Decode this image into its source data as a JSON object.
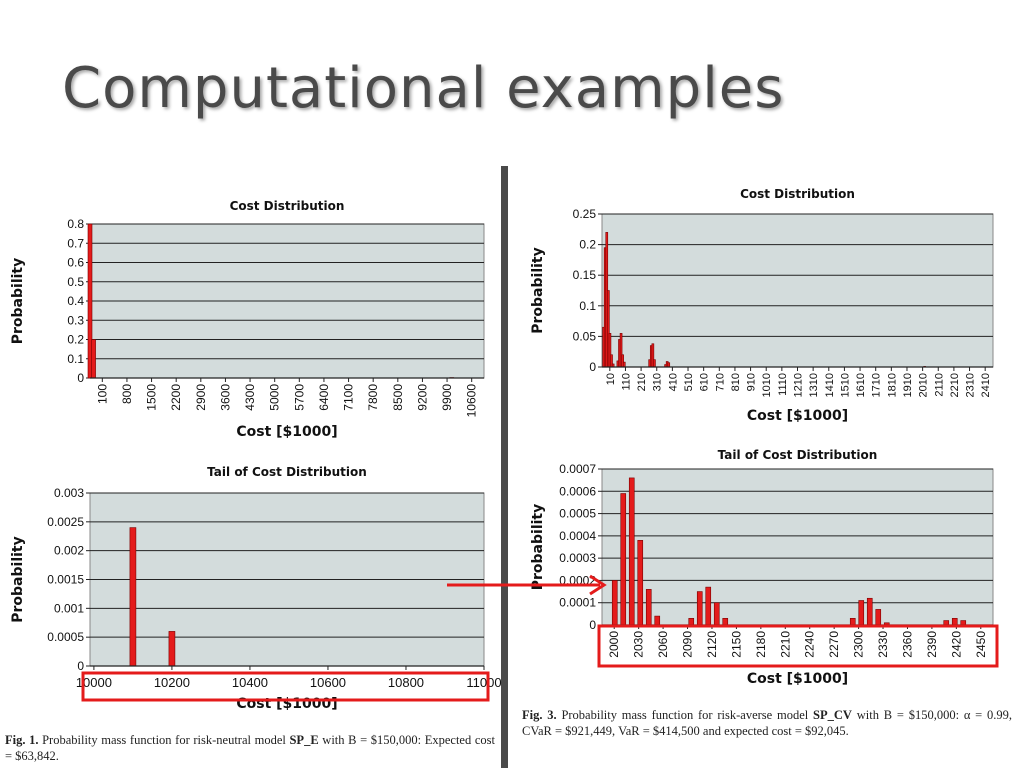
{
  "slide": {
    "title": "Computational examples"
  },
  "captions": {
    "fig1": {
      "label": "Fig. 1.",
      "pre": " Probability mass function for risk-neutral model ",
      "model": "SP_E",
      "post": " with B = $150,000: Expected cost = $63,842."
    },
    "fig3": {
      "label": "Fig. 3.",
      "pre": " Probability mass function for risk-averse model ",
      "model": "SP_CV",
      "post": " with B = $150,000: α = 0.99, CVaR = $921,449, VaR = $414,500 and expected cost = $92,045."
    }
  },
  "colors": {
    "bar": "#e41b1b",
    "bar_edge": "#7a0000",
    "plot_bg": "#d3dcdc",
    "highlight": "#e41b1b"
  },
  "chart_data": [
    {
      "id": "c1",
      "type": "bar",
      "title": "Cost Distribution",
      "xlabel": "Cost [$1000]",
      "ylabel": "Probability",
      "ylim": [
        0,
        0.8
      ],
      "yticks": [
        "0",
        "0.1",
        "0.2",
        "0.3",
        "0.4",
        "0.5",
        "0.6",
        "0.7",
        "0.8"
      ],
      "xticks": [
        "100",
        "800",
        "1500",
        "2200",
        "2900",
        "3600",
        "4300",
        "5000",
        "5700",
        "6400",
        "7100",
        "7800",
        "8500",
        "9200",
        "9900",
        "10600"
      ],
      "xlim": [
        0,
        11000
      ],
      "points": [
        [
          0,
          0.8
        ],
        [
          100,
          0.2
        ],
        [
          10100,
          0.0024
        ],
        [
          10200,
          0.0006
        ]
      ],
      "grid": true
    },
    {
      "id": "c2",
      "type": "bar",
      "title": "Tail of Cost Distribution",
      "xlabel": "Cost [$1000]",
      "ylabel": "Probability",
      "ylim": [
        0,
        0.003
      ],
      "yticks": [
        "0",
        "0.0005",
        "0.001",
        "0.0015",
        "0.002",
        "0.0025",
        "0.003"
      ],
      "xticks": [
        "10000",
        "10200",
        "10400",
        "10600",
        "10800",
        "11000"
      ],
      "xlim": [
        9990,
        11000
      ],
      "points": [
        [
          10100,
          0.0024
        ],
        [
          10200,
          0.0006
        ]
      ],
      "grid": true
    },
    {
      "id": "c3",
      "type": "bar",
      "title": "Cost Distribution",
      "xlabel": "Cost [$1000]",
      "ylabel": "Probability",
      "ylim": [
        0,
        0.25
      ],
      "yticks": [
        "0",
        "0.05",
        "0.1",
        "0.15",
        "0.2",
        "0.25"
      ],
      "xticks": [
        "10",
        "110",
        "210",
        "310",
        "410",
        "510",
        "610",
        "710",
        "810",
        "910",
        "1010",
        "1110",
        "1210",
        "1310",
        "1410",
        "1510",
        "1610",
        "1710",
        "1810",
        "1910",
        "2010",
        "2110",
        "2210",
        "2310",
        "2410"
      ],
      "xlim": [
        0,
        2460
      ],
      "points": [
        [
          10,
          0.065
        ],
        [
          20,
          0.195
        ],
        [
          30,
          0.22
        ],
        [
          40,
          0.125
        ],
        [
          50,
          0.055
        ],
        [
          60,
          0.02
        ],
        [
          70,
          0.005
        ],
        [
          100,
          0.01
        ],
        [
          110,
          0.045
        ],
        [
          120,
          0.055
        ],
        [
          130,
          0.02
        ],
        [
          140,
          0.008
        ],
        [
          300,
          0.012
        ],
        [
          310,
          0.035
        ],
        [
          320,
          0.038
        ],
        [
          330,
          0.012
        ],
        [
          400,
          0.004
        ],
        [
          410,
          0.009
        ],
        [
          420,
          0.007
        ],
        [
          2030,
          0.001
        ]
      ],
      "grid": true
    },
    {
      "id": "c4",
      "type": "bar",
      "title": "Tail of Cost Distribution",
      "xlabel": "Cost [$1000]",
      "ylabel": "Probability",
      "ylim": [
        0,
        0.0007
      ],
      "yticks": [
        "0",
        "0.0001",
        "0.0002",
        "0.0003",
        "0.0004",
        "0.0005",
        "0.0006",
        "0.0007"
      ],
      "xticks": [
        "2000",
        "2030",
        "2060",
        "2090",
        "2120",
        "2150",
        "2180",
        "2210",
        "2240",
        "2270",
        "2300",
        "2330",
        "2360",
        "2390",
        "2420",
        "2450"
      ],
      "xlim": [
        1995,
        2455
      ],
      "points": [
        [
          2010,
          0.0002
        ],
        [
          2020,
          0.00059
        ],
        [
          2030,
          0.00066
        ],
        [
          2040,
          0.00038
        ],
        [
          2050,
          0.00016
        ],
        [
          2060,
          4e-05
        ],
        [
          2100,
          3e-05
        ],
        [
          2110,
          0.00015
        ],
        [
          2120,
          0.00017
        ],
        [
          2130,
          0.0001
        ],
        [
          2140,
          3e-05
        ],
        [
          2290,
          3e-05
        ],
        [
          2300,
          0.00011
        ],
        [
          2310,
          0.00012
        ],
        [
          2320,
          7e-05
        ],
        [
          2330,
          1e-05
        ],
        [
          2400,
          2e-05
        ],
        [
          2410,
          3e-05
        ],
        [
          2420,
          2e-05
        ]
      ],
      "grid": true
    }
  ]
}
